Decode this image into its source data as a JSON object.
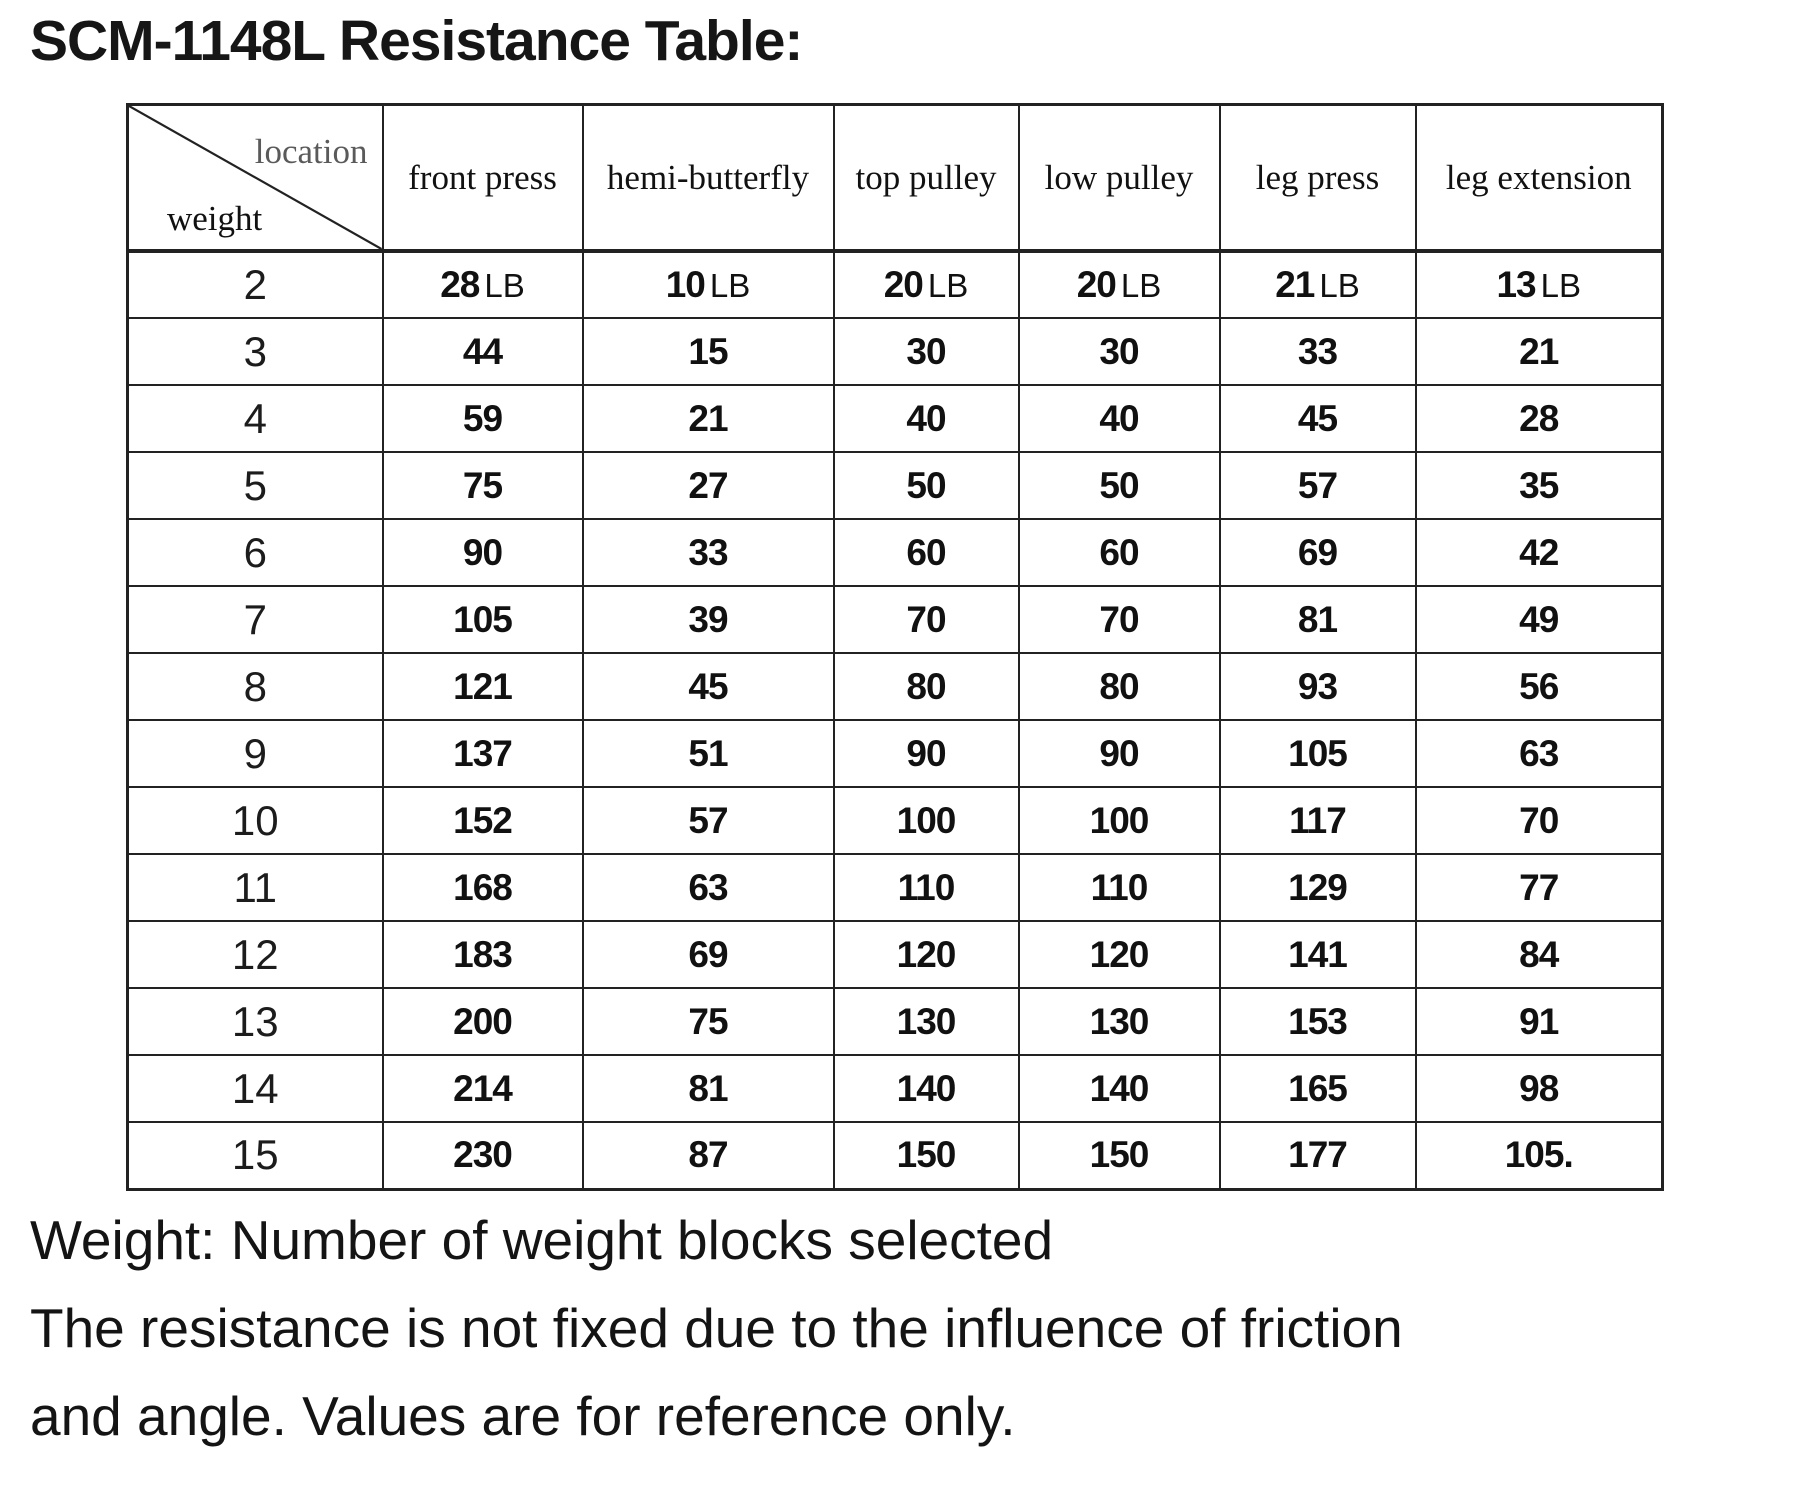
{
  "title": "SCM-1148L Resistance Table:",
  "table": {
    "corner": {
      "top_label": "location",
      "bottom_label": "weight"
    },
    "columns": [
      "front press",
      "hemi-butterfly",
      "top pulley",
      "low pulley",
      "leg press",
      "leg extension"
    ],
    "unit": "LB",
    "rows": [
      {
        "weight": "2",
        "show_unit": true,
        "values": [
          "28",
          "10",
          "20",
          "20",
          "21",
          "13"
        ]
      },
      {
        "weight": "3",
        "show_unit": false,
        "values": [
          "44",
          "15",
          "30",
          "30",
          "33",
          "21"
        ]
      },
      {
        "weight": "4",
        "show_unit": false,
        "values": [
          "59",
          "21",
          "40",
          "40",
          "45",
          "28"
        ]
      },
      {
        "weight": "5",
        "show_unit": false,
        "values": [
          "75",
          "27",
          "50",
          "50",
          "57",
          "35"
        ]
      },
      {
        "weight": "6",
        "show_unit": false,
        "values": [
          "90",
          "33",
          "60",
          "60",
          "69",
          "42"
        ]
      },
      {
        "weight": "7",
        "show_unit": false,
        "values": [
          "105",
          "39",
          "70",
          "70",
          "81",
          "49"
        ]
      },
      {
        "weight": "8",
        "show_unit": false,
        "values": [
          "121",
          "45",
          "80",
          "80",
          "93",
          "56"
        ]
      },
      {
        "weight": "9",
        "show_unit": false,
        "values": [
          "137",
          "51",
          "90",
          "90",
          "105",
          "63"
        ]
      },
      {
        "weight": "10",
        "show_unit": false,
        "values": [
          "152",
          "57",
          "100",
          "100",
          "117",
          "70"
        ]
      },
      {
        "weight": "11",
        "show_unit": false,
        "values": [
          "168",
          "63",
          "110",
          "110",
          "129",
          "77"
        ]
      },
      {
        "weight": "12",
        "show_unit": false,
        "values": [
          "183",
          "69",
          "120",
          "120",
          "141",
          "84"
        ]
      },
      {
        "weight": "13",
        "show_unit": false,
        "values": [
          "200",
          "75",
          "130",
          "130",
          "153",
          "91"
        ]
      },
      {
        "weight": "14",
        "show_unit": false,
        "values": [
          "214",
          "81",
          "140",
          "140",
          "165",
          "98"
        ]
      },
      {
        "weight": "15",
        "show_unit": false,
        "values": [
          "230",
          "87",
          "150",
          "150",
          "177",
          "105."
        ]
      }
    ]
  },
  "notes": [
    "Weight: Number of weight blocks selected",
    "The resistance is not fixed due to the influence of friction",
    "and angle. Values are for reference only."
  ],
  "colors": {
    "text": "#141414",
    "muted_label": "#5a5a5a",
    "border": "#222222",
    "background": "#ffffff"
  }
}
